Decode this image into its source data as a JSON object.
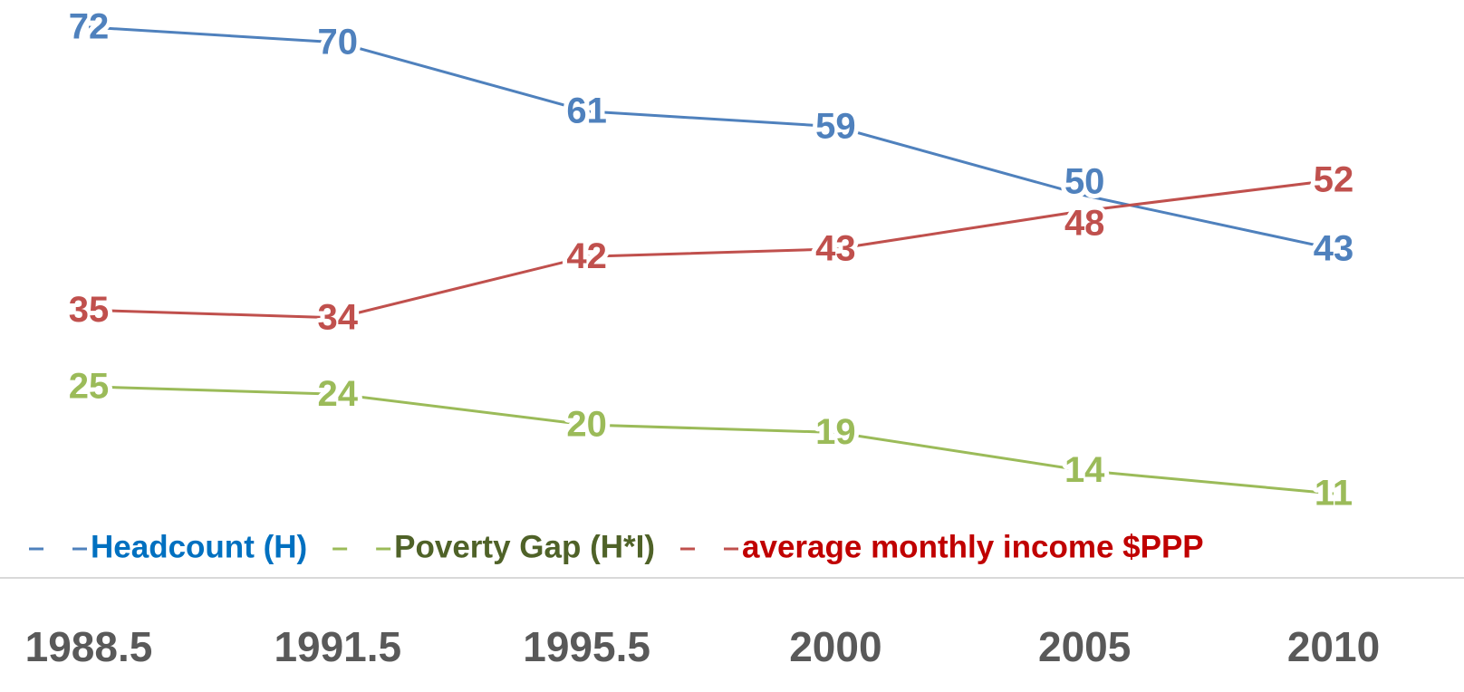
{
  "chart_data": {
    "type": "line",
    "categories": [
      "1988.5",
      "1991.5",
      "1995.5",
      "2000",
      "2005",
      "2010"
    ],
    "series": [
      {
        "name": "Headcount (H)",
        "color": "#4f81bd",
        "legend_text_color": "#0070c0",
        "values": [
          72,
          70,
          61,
          59,
          50,
          43
        ]
      },
      {
        "name": "Poverty Gap (H*I)",
        "color": "#9bbb59",
        "legend_text_color": "#4f6228",
        "values": [
          25,
          24,
          20,
          19,
          14,
          11
        ]
      },
      {
        "name": "average monthly income $PPP",
        "color": "#c0504d",
        "legend_text_color": "#c00000",
        "values": [
          35,
          34,
          42,
          43,
          48,
          52
        ]
      }
    ],
    "legend": "bottom",
    "data_labels": true
  }
}
